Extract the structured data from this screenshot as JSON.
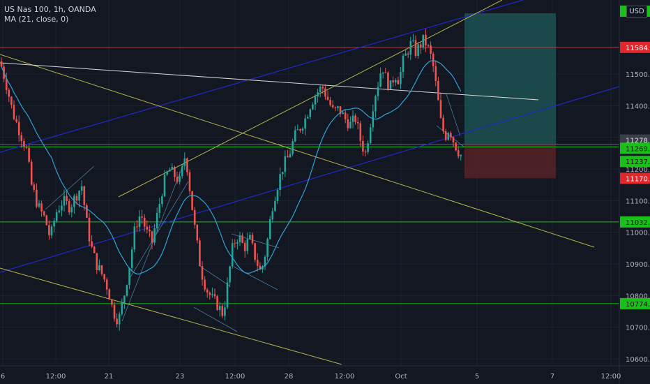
{
  "header": {
    "symbol_line": "US Nas 100, 1h, OANDA",
    "indicator_line": "MA (21, close, 0)",
    "currency_button": "USD"
  },
  "colors": {
    "background": "#131722",
    "up": "#26a69a",
    "down": "#ef5350",
    "ma_line": "#2fa3d6",
    "blue_channel": "#2028c8",
    "yellow_line": "#b5b34a",
    "white_trend": "#d8d8d8",
    "red_level": "#e0282c",
    "green_level": "#18c018",
    "long_target_zone": "#1e5a5a",
    "long_stop_zone": "#5a2428"
  },
  "chart_data": {
    "type": "candlestick",
    "title": "US Nas 100, 1h, OANDA",
    "indicator": "MA (21, close, 0)",
    "ylim": [
      10580,
      11980
    ],
    "y_ticks": [
      10600,
      10700,
      10800,
      10900,
      11000,
      11100,
      11200,
      11300,
      11400,
      11500
    ],
    "y_tick_labels": [
      "10600.0",
      "10700.0",
      "10800.0",
      "10900.0",
      "11000.0",
      "11100.0",
      "11200.0",
      "11300.0",
      "11400.0",
      "11500.0"
    ],
    "x_tick_labels": [
      "6",
      "12:00",
      "21",
      "23",
      "12:00",
      "28",
      "12:00",
      "Oct",
      "5",
      "7",
      "12:00"
    ],
    "horizontal_levels": [
      {
        "price": 11584.2,
        "label": "11584.2",
        "color": "red"
      },
      {
        "price": 11278.2,
        "label": "11278.2",
        "color": "gray"
      },
      {
        "price": 11269.8,
        "label": "11269.8",
        "color": "green"
      },
      {
        "price": 11237.0,
        "label": "11237.0",
        "color": "green"
      },
      {
        "price": 11170.6,
        "label": "11170.6",
        "color": "red"
      },
      {
        "price": 11032.6,
        "label": "11032.6",
        "color": "green"
      },
      {
        "price": 10774.5,
        "label": "10774.5",
        "color": "green"
      }
    ],
    "top_tag_partial": "9",
    "price_path": [
      [
        0,
        11540
      ],
      [
        10,
        11460
      ],
      [
        18,
        11380
      ],
      [
        28,
        11320
      ],
      [
        38,
        11260
      ],
      [
        45,
        11150
      ],
      [
        55,
        11080
      ],
      [
        65,
        11040
      ],
      [
        72,
        10980
      ],
      [
        80,
        11060
      ],
      [
        90,
        11100
      ],
      [
        100,
        11080
      ],
      [
        110,
        11120
      ],
      [
        118,
        11150
      ],
      [
        122,
        11060
      ],
      [
        130,
        10960
      ],
      [
        138,
        10900
      ],
      [
        148,
        10860
      ],
      [
        155,
        10820
      ],
      [
        162,
        10750
      ],
      [
        170,
        10720
      ],
      [
        178,
        10800
      ],
      [
        186,
        10900
      ],
      [
        194,
        11020
      ],
      [
        202,
        11060
      ],
      [
        210,
        11000
      ],
      [
        218,
        10970
      ],
      [
        226,
        11060
      ],
      [
        234,
        11150
      ],
      [
        242,
        11200
      ],
      [
        250,
        11180
      ],
      [
        258,
        11160
      ],
      [
        266,
        11250
      ],
      [
        272,
        11140
      ],
      [
        280,
        11000
      ],
      [
        288,
        10880
      ],
      [
        296,
        10820
      ],
      [
        304,
        10790
      ],
      [
        312,
        10770
      ],
      [
        320,
        10740
      ],
      [
        326,
        10830
      ],
      [
        334,
        10960
      ],
      [
        342,
        10990
      ],
      [
        350,
        10950
      ],
      [
        358,
        10980
      ],
      [
        366,
        10920
      ],
      [
        374,
        10870
      ],
      [
        382,
        10950
      ],
      [
        390,
        11080
      ],
      [
        398,
        11150
      ],
      [
        406,
        11210
      ],
      [
        414,
        11240
      ],
      [
        422,
        11300
      ],
      [
        430,
        11330
      ],
      [
        438,
        11360
      ],
      [
        446,
        11410
      ],
      [
        454,
        11440
      ],
      [
        462,
        11460
      ],
      [
        470,
        11420
      ],
      [
        478,
        11380
      ],
      [
        486,
        11390
      ],
      [
        494,
        11360
      ],
      [
        502,
        11340
      ],
      [
        510,
        11360
      ],
      [
        518,
        11280
      ],
      [
        524,
        11250
      ],
      [
        530,
        11330
      ],
      [
        536,
        11420
      ],
      [
        542,
        11470
      ],
      [
        548,
        11530
      ],
      [
        554,
        11480
      ],
      [
        560,
        11460
      ],
      [
        566,
        11500
      ],
      [
        572,
        11480
      ],
      [
        578,
        11540
      ],
      [
        584,
        11570
      ],
      [
        590,
        11600
      ],
      [
        596,
        11570
      ],
      [
        602,
        11590
      ],
      [
        608,
        11610
      ],
      [
        614,
        11580
      ],
      [
        620,
        11540
      ],
      [
        626,
        11450
      ],
      [
        632,
        11350
      ],
      [
        638,
        11300
      ],
      [
        644,
        11330
      ],
      [
        650,
        11290
      ],
      [
        656,
        11260
      ],
      [
        662,
        11240
      ]
    ],
    "position_tool": {
      "type": "long",
      "entry": 11278.2,
      "target": 11980,
      "stop": 11170.6
    }
  }
}
